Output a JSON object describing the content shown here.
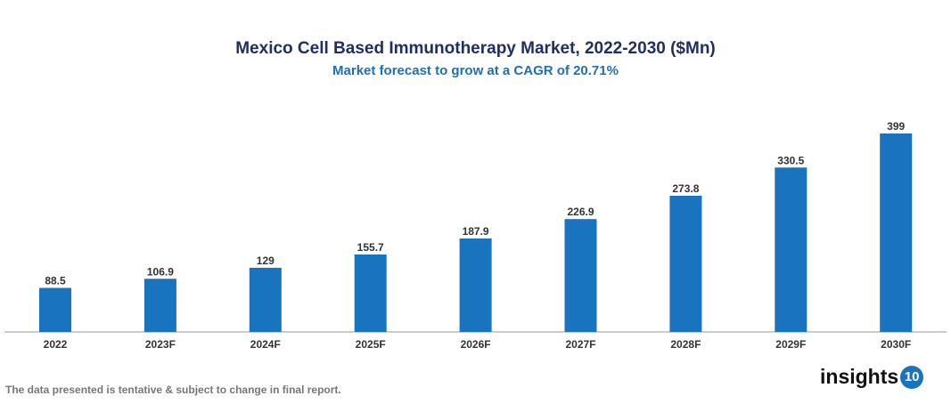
{
  "chart_data": {
    "type": "bar",
    "title": "Mexico Cell Based Immunotherapy Market, 2022-2030 ($Mn)",
    "subtitle": "Market forecast to grow at a CAGR of 20.71%",
    "categories": [
      "2022",
      "2023F",
      "2024F",
      "2025F",
      "2026F",
      "2027F",
      "2028F",
      "2029F",
      "2030F"
    ],
    "values": [
      88.5,
      106.9,
      129,
      155.7,
      187.9,
      226.9,
      273.8,
      330.5,
      399
    ],
    "labels": [
      "88.5",
      "106.9",
      "129",
      "155.7",
      "187.9",
      "226.9",
      "273.8",
      "330.5",
      "399"
    ],
    "xlabel": "",
    "ylabel": "",
    "ylim": [
      0,
      399
    ],
    "grid": false,
    "legend": "none",
    "bar_color": "#1a73be"
  },
  "footnote": "The data presented is tentative & subject to change in final report.",
  "logo": {
    "text": "insights",
    "number": "10"
  }
}
